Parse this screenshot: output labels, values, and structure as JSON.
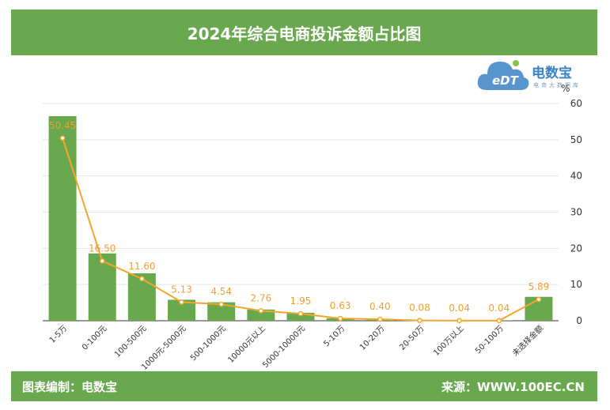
{
  "header": {
    "title": "2024年综合电商投诉金额占比图"
  },
  "logo": {
    "name": "电数宝",
    "sub": "电商大数据库",
    "mark": "eDT"
  },
  "footer": {
    "left": "图表编制：电数宝",
    "right": "来源：WWW.100EC.CN"
  },
  "colors": {
    "bar": "#6aa84f",
    "line": "#f4a62a",
    "header": "#6aa84f",
    "label": "#f0a030"
  },
  "chart_data": {
    "type": "bar",
    "categories": [
      "1-5万",
      "0-100元",
      "100-500元",
      "1000元-5000元",
      "500-1000元",
      "10000元以上",
      "5000-10000元",
      "5-10万",
      "10-20万",
      "20-50万",
      "100万以上",
      "50-100万",
      "未选择金额"
    ],
    "series": [
      {
        "type": "bar",
        "values": [
          56.5,
          18.6,
          13.1,
          5.8,
          5.1,
          3.1,
          2.2,
          0.7,
          0.45,
          0.1,
          0.05,
          0.05,
          6.6
        ]
      },
      {
        "type": "line",
        "values": [
          50.45,
          16.5,
          11.6,
          5.13,
          4.54,
          2.76,
          1.95,
          0.63,
          0.4,
          0.08,
          0.04,
          0.04,
          5.89
        ],
        "labels": [
          "50.45",
          "16.50",
          "11.60",
          "5.13",
          "4.54",
          "2.76",
          "1.95",
          "0.63",
          "0.40",
          "0.08",
          "0.04",
          "0.04",
          "5.89"
        ]
      }
    ],
    "y_axis": {
      "position": "right",
      "unit": "%",
      "ylim": [
        0,
        60
      ],
      "ticks": [
        "0",
        "10",
        "20",
        "30",
        "40",
        "50",
        "60"
      ]
    },
    "grid": true
  }
}
